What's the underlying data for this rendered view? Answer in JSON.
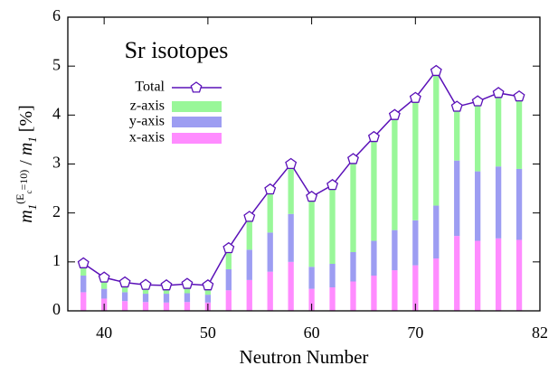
{
  "chart_data": {
    "type": "stacked-bar-line",
    "annotation": "Sr isotopes",
    "xlabel": "Neutron Number",
    "ylabel_parts": [
      "m",
      "1",
      "(E",
      "c",
      "=10)",
      " / ",
      "m",
      "1",
      " [%]"
    ],
    "x": [
      38,
      40,
      42,
      44,
      46,
      48,
      50,
      52,
      54,
      56,
      58,
      60,
      62,
      64,
      66,
      68,
      70,
      72,
      74,
      76,
      78,
      80
    ],
    "xlim": [
      36.5,
      82
    ],
    "xticks": [
      40,
      50,
      60,
      70,
      82
    ],
    "ylim": [
      0,
      6
    ],
    "yticks": [
      0,
      1,
      2,
      3,
      4,
      5,
      6
    ],
    "series": [
      {
        "name": "Total",
        "color": "#5a10b8",
        "values": [
          0.97,
          0.68,
          0.58,
          0.53,
          0.52,
          0.55,
          0.52,
          1.28,
          1.92,
          2.48,
          3.0,
          2.33,
          2.57,
          3.1,
          3.55,
          4.0,
          4.35,
          4.9,
          4.17,
          4.28,
          4.45,
          4.38
        ]
      },
      {
        "name": "z-axis",
        "color": "#99f799",
        "values": [
          0.25,
          0.23,
          0.2,
          0.18,
          0.17,
          0.19,
          0.19,
          0.43,
          0.67,
          0.88,
          1.02,
          1.43,
          1.61,
          1.9,
          2.12,
          2.35,
          2.5,
          2.75,
          1.1,
          1.43,
          1.5,
          1.48
        ]
      },
      {
        "name": "y-axis",
        "color": "#9d9df2",
        "values": [
          0.34,
          0.2,
          0.18,
          0.17,
          0.18,
          0.18,
          0.16,
          0.43,
          0.62,
          0.8,
          0.98,
          0.45,
          0.48,
          0.6,
          0.71,
          0.82,
          0.92,
          1.08,
          1.54,
          1.42,
          1.47,
          1.45
        ]
      },
      {
        "name": "x-axis",
        "color": "#ff8cff",
        "values": [
          0.38,
          0.25,
          0.2,
          0.18,
          0.17,
          0.18,
          0.17,
          0.42,
          0.63,
          0.8,
          1.0,
          0.45,
          0.48,
          0.6,
          0.72,
          0.83,
          0.93,
          1.07,
          1.53,
          1.43,
          1.48,
          1.45
        ]
      }
    ]
  }
}
